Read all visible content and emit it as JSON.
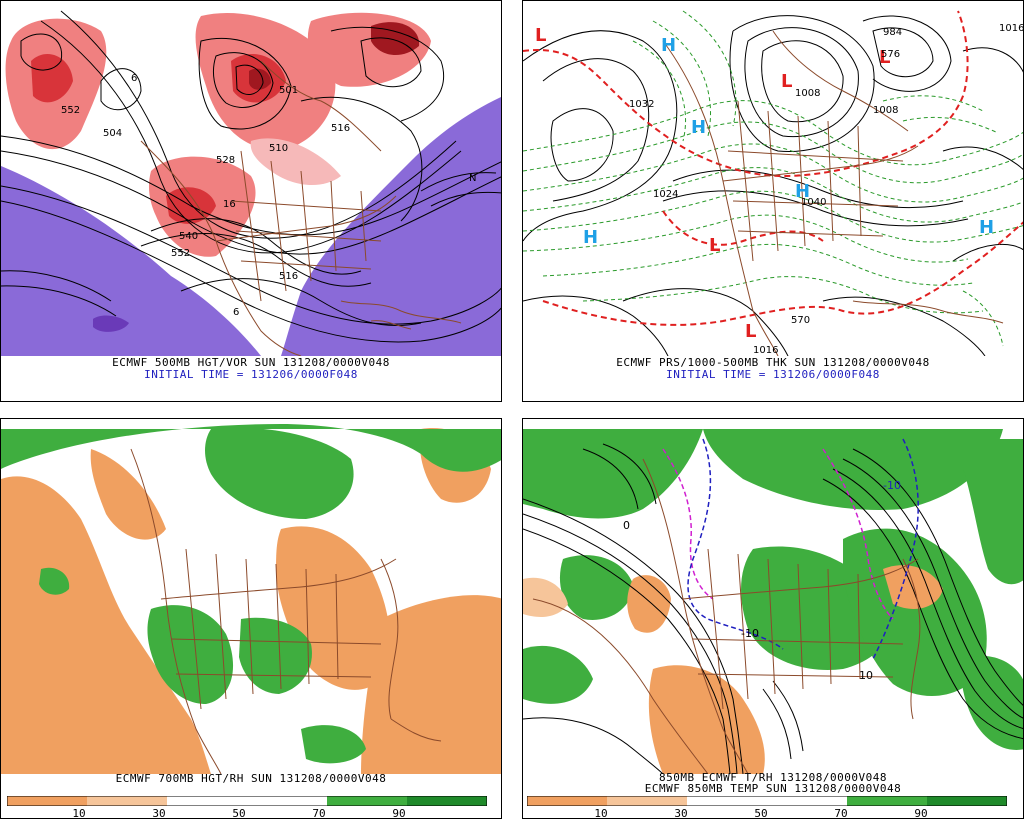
{
  "panels": [
    {
      "caption": "ECMWF 500MB HGT/VOR SUN 131208/0000V048",
      "subcaption": "INITIAL TIME = 131206/0000F048"
    },
    {
      "caption": "ECMWF PRS/1000-500MB THK SUN 131208/0000V048",
      "subcaption": "INITIAL TIME = 131206/0000F048"
    },
    {
      "caption": "ECMWF 700MB HGT/RH SUN 131208/0000V048",
      "subcaption": ""
    },
    {
      "caption": "850MB ECMWF T/RH 131208/0000V048",
      "subcaption": "ECMWF 850MB TEMP SUN 131208/0000V048"
    }
  ],
  "colorbar_ticks": [
    "10",
    "30",
    "50",
    "70",
    "90"
  ],
  "colors": {
    "vort_high": "#d8343a",
    "vort_mid": "#f08080",
    "vort_low": "#f6b9b9",
    "vort_negative": "#8a6ad8",
    "dry": "#f0a060",
    "moist": "#3fae3f",
    "moist_dark": "#1f8a2a",
    "border": "#8b4a2b",
    "high_marker": "#1fa0e6",
    "low_marker": "#e02020"
  },
  "labels_panel1": [
    "552",
    "504",
    "501",
    "516",
    "528",
    "510",
    "540",
    "552",
    "516",
    "6",
    "6",
    "16",
    "N"
  ],
  "labels_panel2": [
    "L",
    "L",
    "L",
    "L",
    "L",
    "H",
    "H",
    "H",
    "H",
    "H",
    "1032",
    "1008",
    "1016",
    "1040",
    "1024",
    "576",
    "570",
    "1008",
    "984",
    "1016"
  ],
  "labels_panel4": [
    "-10",
    "-10",
    "10",
    "0"
  ]
}
